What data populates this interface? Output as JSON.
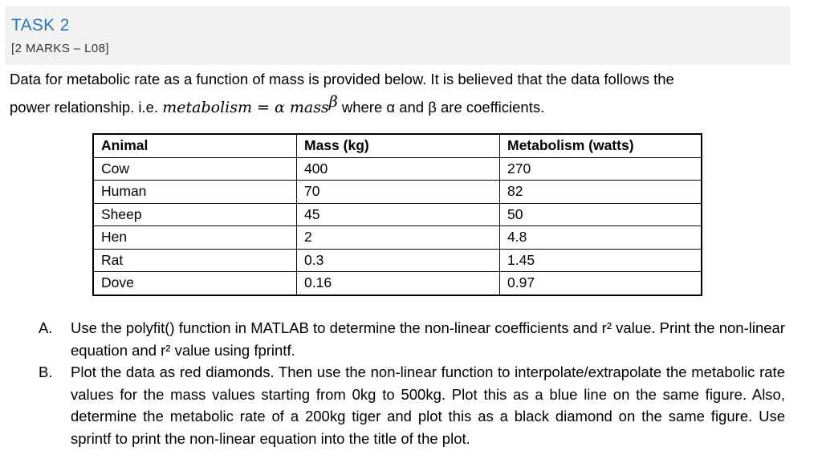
{
  "header": {
    "title": "TASK 2",
    "marks": "[2 MARKS – L08]"
  },
  "intro": {
    "line1": "Data for metabolic rate as a function of mass is provided below. It is believed that the data follows the",
    "line2_prefix": "power relationship. i.e. ",
    "eq_lhs": "metabolism",
    "eq_equals": " = ",
    "eq_alpha": "α mass",
    "eq_beta": "β",
    "line2_suffix": " where α and β are coefficients."
  },
  "table": {
    "headers": [
      "Animal",
      "Mass (kg)",
      "Metabolism (watts)"
    ],
    "rows": [
      [
        "Cow",
        "400",
        "270"
      ],
      [
        "Human",
        "70",
        "82"
      ],
      [
        "Sheep",
        "45",
        "50"
      ],
      [
        "Hen",
        "2",
        "4.8"
      ],
      [
        "Rat",
        "0.3",
        "1.45"
      ],
      [
        "Dove",
        "0.16",
        "0.97"
      ]
    ]
  },
  "questions": [
    {
      "letter": "A.",
      "text": "Use the polyfit() function in MATLAB to determine the non-linear coefficients and r² value. Print the non-linear equation and r² value using fprintf."
    },
    {
      "letter": "B.",
      "text": "Plot the data as red diamonds. Then use the non-linear function to interpolate/extrapolate the metabolic rate values for the mass values starting from 0kg to 500kg. Plot this as a blue line on the same figure. Also, determine the metabolic rate of a 200kg tiger and plot this as a black diamond on the same figure.  Use sprintf to print the non-linear equation into the title of the plot."
    }
  ]
}
